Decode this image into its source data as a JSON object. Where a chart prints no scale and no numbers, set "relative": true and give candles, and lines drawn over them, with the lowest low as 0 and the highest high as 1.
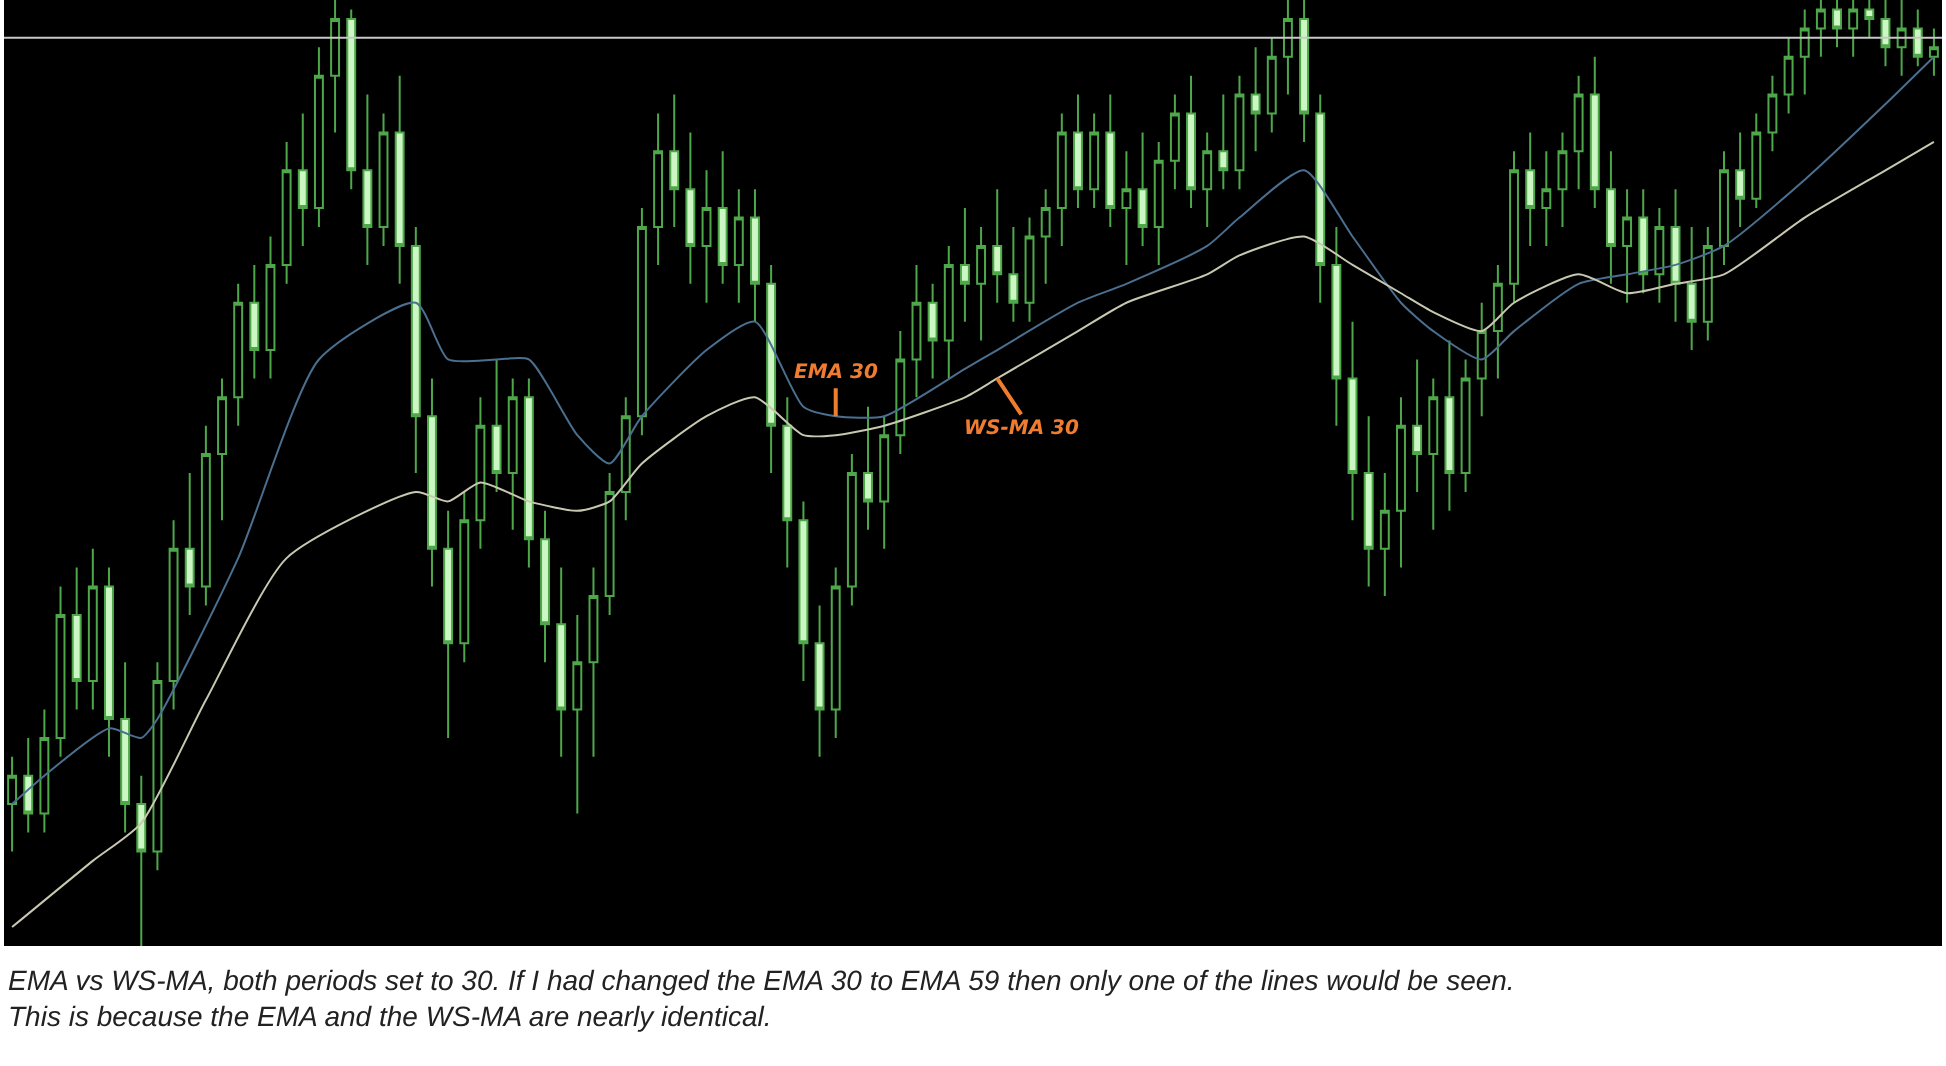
{
  "chart_data": {
    "type": "candlestick",
    "relative": true,
    "categories": [
      null,
      null,
      null,
      null,
      null,
      null,
      null,
      null,
      null,
      null,
      null,
      null,
      null,
      null,
      null,
      null,
      null,
      null,
      null,
      null,
      null,
      null,
      null,
      null,
      null,
      null,
      null,
      null,
      null,
      null,
      null,
      null,
      null,
      null,
      null,
      null,
      null,
      null,
      null,
      null,
      null,
      null,
      null,
      null,
      null,
      null,
      null,
      null,
      null,
      null,
      null,
      null,
      null,
      null,
      null,
      null,
      null,
      null,
      null,
      null,
      null,
      null,
      null,
      null,
      null,
      null,
      null,
      null,
      null,
      null,
      null,
      null,
      null,
      null,
      null,
      null,
      null,
      null,
      null,
      null,
      null,
      null,
      null,
      null,
      null,
      null,
      null,
      null,
      null,
      null,
      null,
      null,
      null,
      null,
      null,
      null,
      null,
      null,
      null,
      null,
      null,
      null,
      null,
      null,
      null,
      null,
      null,
      null,
      null,
      null,
      null,
      null,
      null,
      null,
      null,
      null,
      null,
      null,
      null,
      null
    ],
    "series": [
      {
        "color": "#4ea84a",
        "ohlc": [
          [
            0.15,
            0.2,
            0.1,
            0.18
          ],
          [
            0.18,
            0.22,
            0.12,
            0.14
          ],
          [
            0.14,
            0.25,
            0.12,
            0.22
          ],
          [
            0.22,
            0.38,
            0.2,
            0.35
          ],
          [
            0.35,
            0.4,
            0.25,
            0.28
          ],
          [
            0.28,
            0.42,
            0.25,
            0.38
          ],
          [
            0.38,
            0.4,
            0.2,
            0.24
          ],
          [
            0.24,
            0.3,
            0.12,
            0.15
          ],
          [
            0.15,
            0.18,
            0.0,
            0.1
          ],
          [
            0.1,
            0.3,
            0.08,
            0.28
          ],
          [
            0.28,
            0.45,
            0.25,
            0.42
          ],
          [
            0.42,
            0.5,
            0.35,
            0.38
          ],
          [
            0.38,
            0.55,
            0.36,
            0.52
          ],
          [
            0.52,
            0.6,
            0.45,
            0.58
          ],
          [
            0.58,
            0.7,
            0.55,
            0.68
          ],
          [
            0.68,
            0.72,
            0.6,
            0.63
          ],
          [
            0.63,
            0.75,
            0.6,
            0.72
          ],
          [
            0.72,
            0.85,
            0.7,
            0.82
          ],
          [
            0.82,
            0.88,
            0.74,
            0.78
          ],
          [
            0.78,
            0.95,
            0.76,
            0.92
          ],
          [
            0.92,
            1.0,
            0.86,
            0.98
          ],
          [
            0.98,
            0.99,
            0.8,
            0.82
          ],
          [
            0.82,
            0.9,
            0.72,
            0.76
          ],
          [
            0.76,
            0.88,
            0.74,
            0.86
          ],
          [
            0.86,
            0.92,
            0.7,
            0.74
          ],
          [
            0.74,
            0.76,
            0.5,
            0.56
          ],
          [
            0.56,
            0.6,
            0.38,
            0.42
          ],
          [
            0.42,
            0.46,
            0.22,
            0.32
          ],
          [
            0.32,
            0.48,
            0.3,
            0.45
          ],
          [
            0.45,
            0.58,
            0.42,
            0.55
          ],
          [
            0.55,
            0.62,
            0.48,
            0.5
          ],
          [
            0.5,
            0.6,
            0.44,
            0.58
          ],
          [
            0.58,
            0.6,
            0.4,
            0.43
          ],
          [
            0.43,
            0.46,
            0.3,
            0.34
          ],
          [
            0.34,
            0.4,
            0.2,
            0.25
          ],
          [
            0.25,
            0.35,
            0.14,
            0.3
          ],
          [
            0.3,
            0.4,
            0.2,
            0.37
          ],
          [
            0.37,
            0.5,
            0.35,
            0.48
          ],
          [
            0.48,
            0.58,
            0.45,
            0.56
          ],
          [
            0.56,
            0.78,
            0.54,
            0.76
          ],
          [
            0.76,
            0.88,
            0.72,
            0.84
          ],
          [
            0.84,
            0.9,
            0.76,
            0.8
          ],
          [
            0.8,
            0.86,
            0.7,
            0.74
          ],
          [
            0.74,
            0.82,
            0.68,
            0.78
          ],
          [
            0.78,
            0.84,
            0.7,
            0.72
          ],
          [
            0.72,
            0.8,
            0.68,
            0.77
          ],
          [
            0.77,
            0.8,
            0.66,
            0.7
          ],
          [
            0.7,
            0.72,
            0.5,
            0.55
          ],
          [
            0.55,
            0.58,
            0.4,
            0.45
          ],
          [
            0.45,
            0.47,
            0.28,
            0.32
          ],
          [
            0.32,
            0.36,
            0.2,
            0.25
          ],
          [
            0.25,
            0.4,
            0.22,
            0.38
          ],
          [
            0.38,
            0.52,
            0.36,
            0.5
          ],
          [
            0.5,
            0.57,
            0.44,
            0.47
          ],
          [
            0.47,
            0.56,
            0.42,
            0.54
          ],
          [
            0.54,
            0.65,
            0.52,
            0.62
          ],
          [
            0.62,
            0.72,
            0.58,
            0.68
          ],
          [
            0.68,
            0.7,
            0.6,
            0.64
          ],
          [
            0.64,
            0.74,
            0.6,
            0.72
          ],
          [
            0.72,
            0.78,
            0.66,
            0.7
          ],
          [
            0.7,
            0.76,
            0.64,
            0.74
          ],
          [
            0.74,
            0.8,
            0.68,
            0.71
          ],
          [
            0.71,
            0.76,
            0.66,
            0.68
          ],
          [
            0.68,
            0.77,
            0.66,
            0.75
          ],
          [
            0.75,
            0.8,
            0.7,
            0.78
          ],
          [
            0.78,
            0.88,
            0.74,
            0.86
          ],
          [
            0.86,
            0.9,
            0.78,
            0.8
          ],
          [
            0.8,
            0.88,
            0.78,
            0.86
          ],
          [
            0.86,
            0.9,
            0.76,
            0.78
          ],
          [
            0.78,
            0.84,
            0.72,
            0.8
          ],
          [
            0.8,
            0.86,
            0.74,
            0.76
          ],
          [
            0.76,
            0.85,
            0.72,
            0.83
          ],
          [
            0.83,
            0.9,
            0.8,
            0.88
          ],
          [
            0.88,
            0.92,
            0.78,
            0.8
          ],
          [
            0.8,
            0.86,
            0.76,
            0.84
          ],
          [
            0.84,
            0.9,
            0.8,
            0.82
          ],
          [
            0.82,
            0.92,
            0.8,
            0.9
          ],
          [
            0.9,
            0.95,
            0.84,
            0.88
          ],
          [
            0.88,
            0.96,
            0.86,
            0.94
          ],
          [
            0.94,
            1.0,
            0.9,
            0.98
          ],
          [
            0.98,
            1.0,
            0.85,
            0.88
          ],
          [
            0.88,
            0.9,
            0.68,
            0.72
          ],
          [
            0.72,
            0.76,
            0.55,
            0.6
          ],
          [
            0.6,
            0.66,
            0.45,
            0.5
          ],
          [
            0.5,
            0.56,
            0.38,
            0.42
          ],
          [
            0.42,
            0.5,
            0.37,
            0.46
          ],
          [
            0.46,
            0.58,
            0.4,
            0.55
          ],
          [
            0.55,
            0.62,
            0.48,
            0.52
          ],
          [
            0.52,
            0.6,
            0.44,
            0.58
          ],
          [
            0.58,
            0.64,
            0.46,
            0.5
          ],
          [
            0.5,
            0.62,
            0.48,
            0.6
          ],
          [
            0.6,
            0.68,
            0.56,
            0.65
          ],
          [
            0.65,
            0.72,
            0.6,
            0.7
          ],
          [
            0.7,
            0.84,
            0.68,
            0.82
          ],
          [
            0.82,
            0.86,
            0.74,
            0.78
          ],
          [
            0.78,
            0.84,
            0.74,
            0.8
          ],
          [
            0.8,
            0.86,
            0.76,
            0.84
          ],
          [
            0.84,
            0.92,
            0.8,
            0.9
          ],
          [
            0.9,
            0.94,
            0.78,
            0.8
          ],
          [
            0.8,
            0.84,
            0.7,
            0.74
          ],
          [
            0.74,
            0.8,
            0.68,
            0.77
          ],
          [
            0.77,
            0.8,
            0.69,
            0.71
          ],
          [
            0.71,
            0.78,
            0.68,
            0.76
          ],
          [
            0.76,
            0.8,
            0.66,
            0.7
          ],
          [
            0.7,
            0.76,
            0.63,
            0.66
          ],
          [
            0.66,
            0.76,
            0.64,
            0.74
          ],
          [
            0.74,
            0.84,
            0.72,
            0.82
          ],
          [
            0.82,
            0.86,
            0.76,
            0.79
          ],
          [
            0.79,
            0.88,
            0.78,
            0.86
          ],
          [
            0.86,
            0.92,
            0.84,
            0.9
          ],
          [
            0.9,
            0.96,
            0.88,
            0.94
          ],
          [
            0.94,
            0.99,
            0.9,
            0.97
          ],
          [
            0.97,
            1.0,
            0.94,
            0.99
          ],
          [
            0.99,
            1.0,
            0.95,
            0.97
          ],
          [
            0.97,
            1.0,
            0.94,
            0.99
          ],
          [
            0.99,
            1.0,
            0.96,
            0.98
          ],
          [
            0.98,
            1.0,
            0.93,
            0.95
          ],
          [
            0.95,
            1.0,
            0.92,
            0.97
          ],
          [
            0.97,
            0.99,
            0.93,
            0.94
          ],
          [
            0.94,
            0.97,
            0.92,
            0.95
          ]
        ]
      },
      {
        "type": "line",
        "name": "EMA 30",
        "color": "#4a6f8f",
        "values": [
          0.15,
          null,
          0.18,
          null,
          null,
          null,
          0.23,
          null,
          0.22,
          0.24,
          null,
          null,
          null,
          null,
          0.41,
          null,
          null,
          null,
          null,
          0.62,
          null,
          null,
          null,
          null,
          null,
          0.68,
          null,
          0.62,
          null,
          null,
          0.62,
          null,
          0.62,
          null,
          null,
          0.54,
          null,
          0.51,
          null,
          0.56,
          null,
          null,
          null,
          0.63,
          null,
          null,
          0.66,
          null,
          null,
          0.57,
          null,
          0.56,
          null,
          null,
          0.56,
          null,
          null,
          null,
          null,
          0.61,
          null,
          0.63,
          null,
          null,
          null,
          null,
          0.68,
          null,
          null,
          0.7,
          null,
          null,
          null,
          null,
          0.74,
          null,
          0.77,
          null,
          null,
          null,
          0.82,
          null,
          null,
          0.75,
          null,
          null,
          0.68,
          null,
          0.65,
          null,
          null,
          0.62,
          null,
          0.65,
          null,
          null,
          null,
          0.7,
          null,
          null,
          0.71,
          null,
          null,
          0.72,
          null,
          null,
          0.74,
          null,
          null,
          null,
          null,
          0.81,
          null,
          null,
          null,
          null,
          0.89,
          null,
          null,
          0.94
        ]
      },
      {
        "type": "line",
        "name": "WS-MA 30",
        "color": "#c8c8b0",
        "values": [
          0.02,
          null,
          null,
          null,
          null,
          0.09,
          null,
          null,
          0.13,
          null,
          null,
          null,
          0.26,
          null,
          null,
          null,
          null,
          0.41,
          null,
          null,
          null,
          null,
          null,
          null,
          null,
          0.48,
          null,
          0.47,
          null,
          0.49,
          null,
          null,
          0.47,
          null,
          null,
          0.46,
          null,
          0.47,
          null,
          0.51,
          null,
          null,
          null,
          0.56,
          null,
          null,
          0.58,
          null,
          null,
          0.54,
          null,
          0.54,
          null,
          null,
          0.55,
          null,
          null,
          null,
          null,
          0.58,
          null,
          0.6,
          null,
          null,
          null,
          null,
          0.65,
          null,
          null,
          0.68,
          null,
          null,
          null,
          null,
          0.71,
          null,
          0.73,
          null,
          null,
          null,
          0.75,
          null,
          null,
          0.72,
          null,
          null,
          0.69,
          null,
          0.67,
          null,
          null,
          0.65,
          null,
          0.68,
          null,
          null,
          null,
          0.71,
          null,
          null,
          0.69,
          null,
          null,
          0.7,
          null,
          null,
          0.71,
          null,
          null,
          null,
          null,
          0.77,
          null,
          null,
          null,
          null,
          0.82,
          null,
          null,
          0.85
        ]
      }
    ],
    "ref_lines": [
      {
        "axis": "y",
        "value": 0.96,
        "color": "#c8c8c8"
      }
    ],
    "annotations": [
      "EMA vs WS-MA, both periods set to 30. If I had changed the EMA 30 to EMA 59 then only one of the lines would be seen. This is because the EMA and the WS-MA are nearly identical."
    ]
  }
}
